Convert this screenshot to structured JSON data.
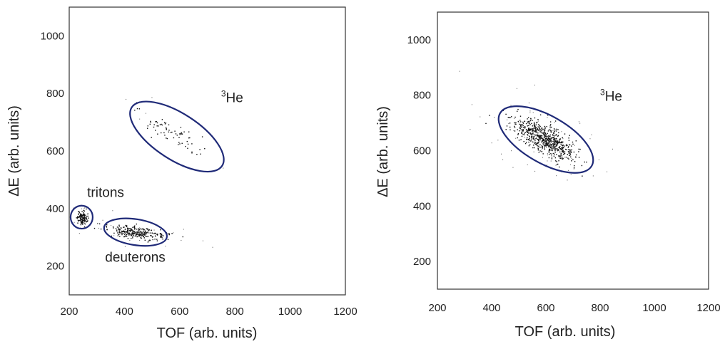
{
  "chart_data": [
    {
      "type": "scatter",
      "title": "",
      "xlabel": "TOF (arb. units)",
      "ylabel": "ΔE (arb. units)",
      "xlim": [
        200,
        1200
      ],
      "ylim": [
        100,
        1100
      ],
      "xticks": [
        "200",
        "400",
        "600",
        "800",
        "1000",
        "1200"
      ],
      "yticks": [
        "200",
        "400",
        "600",
        "800",
        "1000"
      ],
      "annotations": [
        {
          "text": "tritons",
          "x": 265,
          "y": 440
        },
        {
          "text": "deuterons",
          "x": 330,
          "y": 215
        },
        {
          "text": "He",
          "superscript": "3",
          "x": 750,
          "y": 770
        }
      ],
      "clusters": [
        {
          "label": "tritons",
          "center": [
            245,
            368
          ],
          "spread": [
            9,
            12
          ],
          "count": 120,
          "angle_deg": 0
        },
        {
          "label": "deuterons",
          "center": [
            440,
            318
          ],
          "spread": [
            55,
            10
          ],
          "count": 260,
          "angle_deg": -7
        },
        {
          "label": "3He",
          "center": [
            570,
            665
          ],
          "spread": [
            60,
            18
          ],
          "count": 70,
          "angle_deg": -33
        }
      ],
      "gates": [
        {
          "label": "tritons",
          "center": [
            245,
            370
          ],
          "radii": [
            40,
            40
          ],
          "angle_deg": 0
        },
        {
          "label": "deuterons",
          "center": [
            440,
            318
          ],
          "radii": [
            115,
            45
          ],
          "angle_deg": -9
        },
        {
          "label": "3He",
          "center": [
            590,
            650
          ],
          "radii": [
            195,
            80
          ],
          "angle_deg": -33
        }
      ],
      "grid": false
    },
    {
      "type": "scatter",
      "title": "",
      "xlabel": "TOF (arb. units)",
      "ylabel": "ΔE (arb. units)",
      "xlim": [
        200,
        1200
      ],
      "ylim": [
        100,
        1100
      ],
      "xticks": [
        "200",
        "400",
        "600",
        "800",
        "1000",
        "1200"
      ],
      "yticks": [
        "200",
        "400",
        "600",
        "800",
        "1000"
      ],
      "annotations": [
        {
          "text": "He",
          "superscript": "3",
          "x": 800,
          "y": 780
        }
      ],
      "clusters": [
        {
          "label": "3He",
          "center": [
            590,
            645
          ],
          "spread": [
            65,
            22
          ],
          "count": 650,
          "angle_deg": -30
        }
      ],
      "gates": [
        {
          "label": "3He",
          "center": [
            600,
            640
          ],
          "radii": [
            195,
            85
          ],
          "angle_deg": -30
        }
      ],
      "grid": false
    }
  ]
}
